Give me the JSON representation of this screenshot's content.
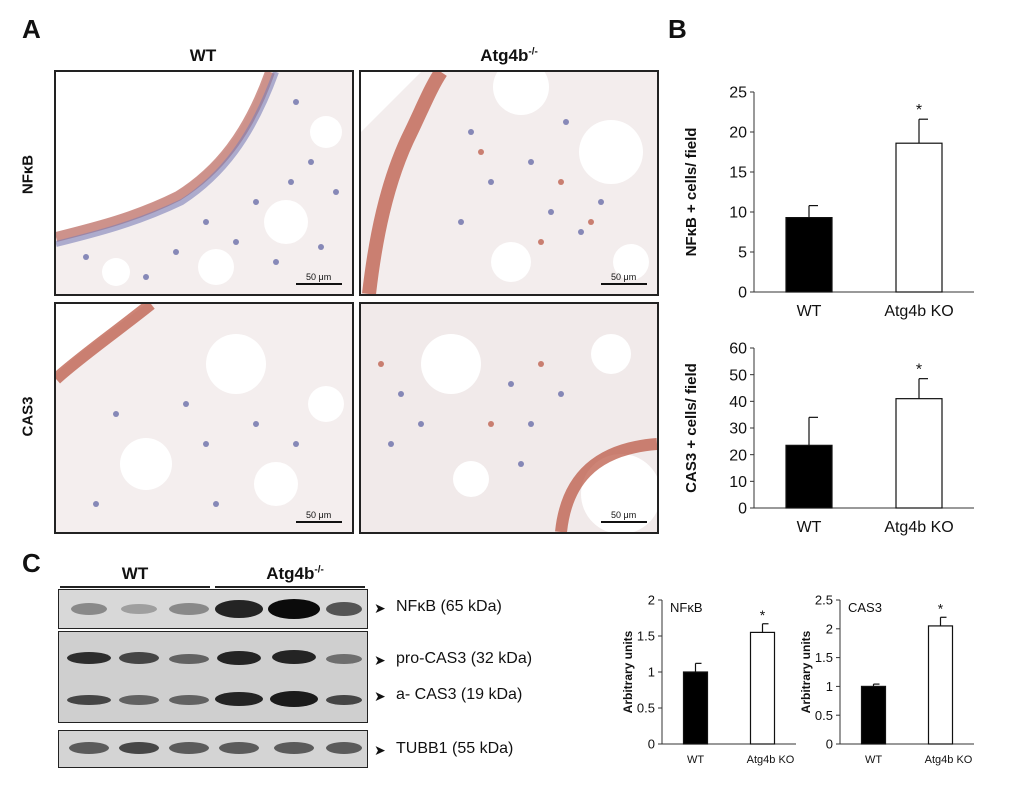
{
  "panels": {
    "a": {
      "letter": "A",
      "columns": [
        "WT",
        "Atg4b-/-"
      ],
      "rows": [
        "NFκB",
        "CAS3"
      ],
      "scale_bar": "50 μm"
    },
    "b": {
      "letter": "B"
    },
    "c": {
      "letter": "C",
      "groups": [
        "WT",
        "Atg4b-/-"
      ],
      "bands": [
        "NFκB  (65 kDa)",
        "pro-CAS3 (32 kDa)",
        "a- CAS3 (19 kDa)",
        "TUBB1  (55 kDa)"
      ]
    }
  },
  "chart_data": [
    {
      "type": "bar",
      "panel": "B-top",
      "categories": [
        "WT",
        "Atg4b KO"
      ],
      "values": [
        9.3,
        18.6
      ],
      "errors": [
        1.5,
        3.0
      ],
      "significance": [
        "",
        "*"
      ],
      "ylabel": "NFκB + cells/ field",
      "ylim": [
        0,
        25
      ],
      "yticks": [
        0,
        5,
        10,
        15,
        20,
        25
      ],
      "fill": [
        "#000000",
        "#ffffff"
      ]
    },
    {
      "type": "bar",
      "panel": "B-bottom",
      "categories": [
        "WT",
        "Atg4b KO"
      ],
      "values": [
        23.5,
        41.0
      ],
      "errors": [
        10.5,
        7.5
      ],
      "significance": [
        "",
        "*"
      ],
      "ylabel": "CAS3 + cells/ field",
      "ylim": [
        0,
        60
      ],
      "yticks": [
        0,
        10,
        20,
        30,
        40,
        50,
        60
      ],
      "fill": [
        "#000000",
        "#ffffff"
      ]
    },
    {
      "type": "bar",
      "panel": "C-NFkB",
      "title": "NFκB",
      "categories": [
        "WT",
        "Atg4b KO"
      ],
      "values": [
        1.0,
        1.55
      ],
      "errors": [
        0.12,
        0.12
      ],
      "significance": [
        "",
        "*"
      ],
      "ylabel": "Arbitrary units",
      "ylim": [
        0,
        2
      ],
      "yticks": [
        0,
        0.5,
        1,
        1.5,
        2
      ],
      "fill": [
        "#000000",
        "#ffffff"
      ]
    },
    {
      "type": "bar",
      "panel": "C-CAS3",
      "title": "CAS3",
      "categories": [
        "WT",
        "Atg4b KO"
      ],
      "values": [
        1.0,
        2.05
      ],
      "errors": [
        0.04,
        0.15
      ],
      "significance": [
        "",
        "*"
      ],
      "ylabel": "Arbitrary units",
      "ylim": [
        0,
        2.5
      ],
      "yticks": [
        0,
        0.5,
        1,
        1.5,
        2,
        2.5
      ],
      "fill": [
        "#000000",
        "#ffffff"
      ]
    }
  ]
}
